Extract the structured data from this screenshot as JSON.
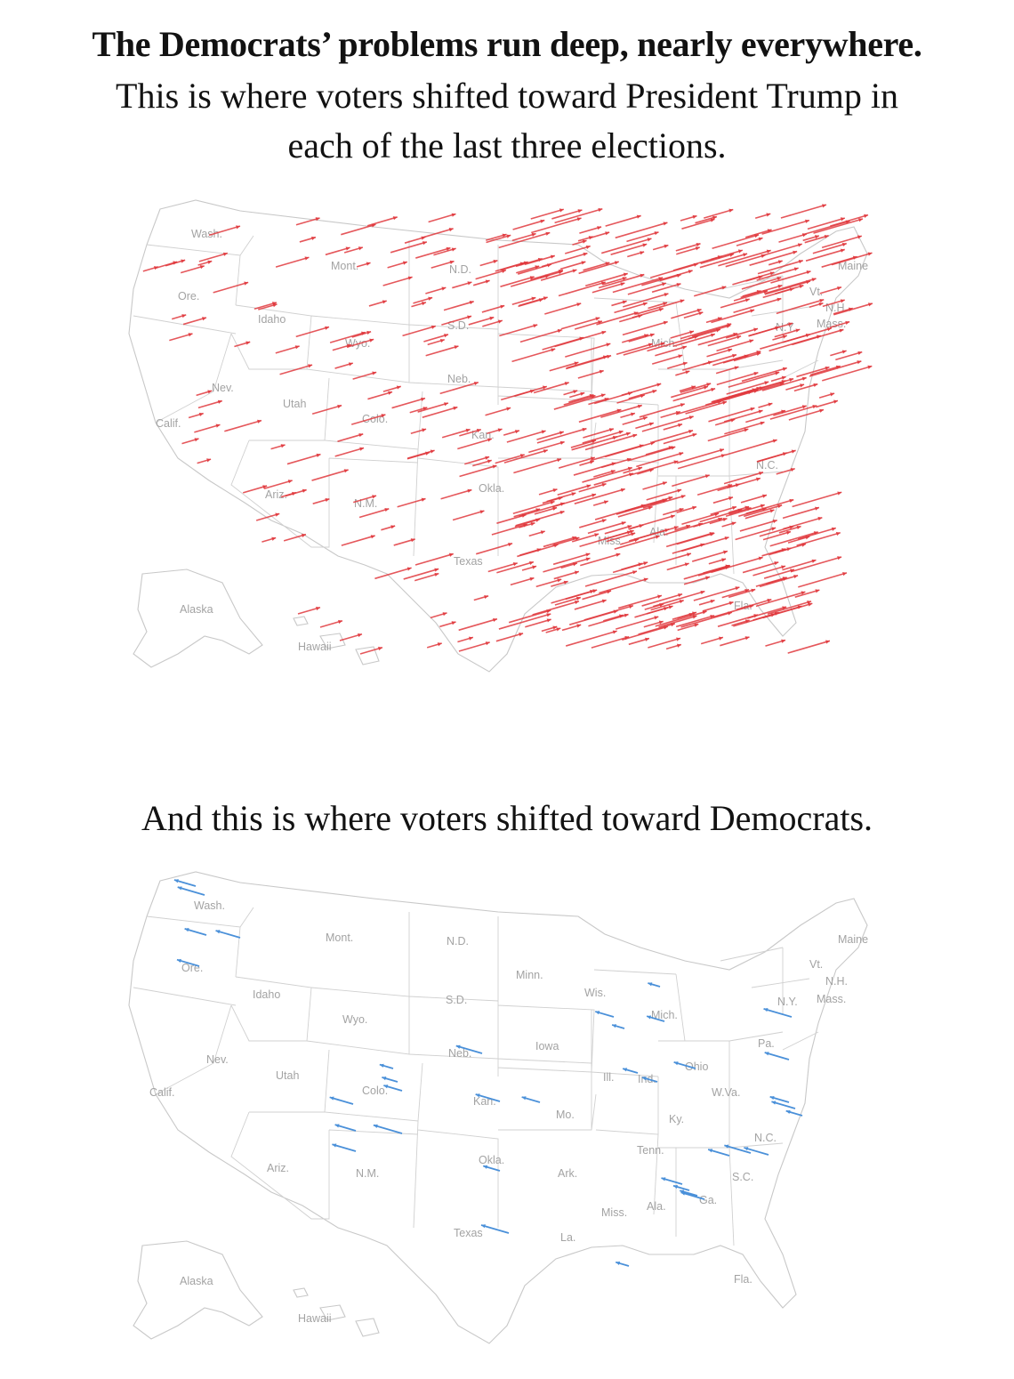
{
  "headline": "The Democrats’ problems run deep, nearly everywhere.",
  "subhead_lines": [
    "This is where voters shifted toward President Trump in",
    "each of the last three elections."
  ],
  "subhead2": "And this is where voters shifted toward Democrats.",
  "colors": {
    "trump_shift": "#e03a3e",
    "dem_shift": "#4a90d9",
    "state_border": "#c8c8c8",
    "label": "#a3a3a3"
  },
  "maps": [
    {
      "id": "trump-shift",
      "arrow_direction": "right",
      "arrow_color": "#e03a3e",
      "state_labels": [
        "Wash.",
        "Ore.",
        "Calif.",
        "Nev.",
        "Idaho",
        "Mont.",
        "Wyo.",
        "Utah",
        "Colo.",
        "Ariz.",
        "N.M.",
        "N.D.",
        "S.D.",
        "Neb.",
        "Kan.",
        "Okla.",
        "Texas",
        "Mich.",
        "Miss.",
        "Ala.",
        "N.C.",
        "Fla.",
        "N.Y.",
        "Vt.",
        "N.H.",
        "Mass.",
        "Maine",
        "Alaska",
        "Hawaii"
      ]
    },
    {
      "id": "dem-shift",
      "arrow_direction": "left",
      "arrow_color": "#4a90d9",
      "state_labels": [
        "Wash.",
        "Ore.",
        "Calif.",
        "Nev.",
        "Idaho",
        "Mont.",
        "Wyo.",
        "Utah",
        "Colo.",
        "Ariz.",
        "N.M.",
        "N.D.",
        "S.D.",
        "Neb.",
        "Kan.",
        "Okla.",
        "Texas",
        "Minn.",
        "Iowa",
        "Mo.",
        "Ark.",
        "La.",
        "Wis.",
        "Mich.",
        "Ill.",
        "Ind.",
        "Ohio",
        "Ky.",
        "Tenn.",
        "Miss.",
        "Ala.",
        "Ga.",
        "S.C.",
        "N.C.",
        "W.Va.",
        "Pa.",
        "N.Y.",
        "Vt.",
        "N.H.",
        "Mass.",
        "Maine",
        "Fla.",
        "Alaska",
        "Hawaii"
      ]
    }
  ]
}
